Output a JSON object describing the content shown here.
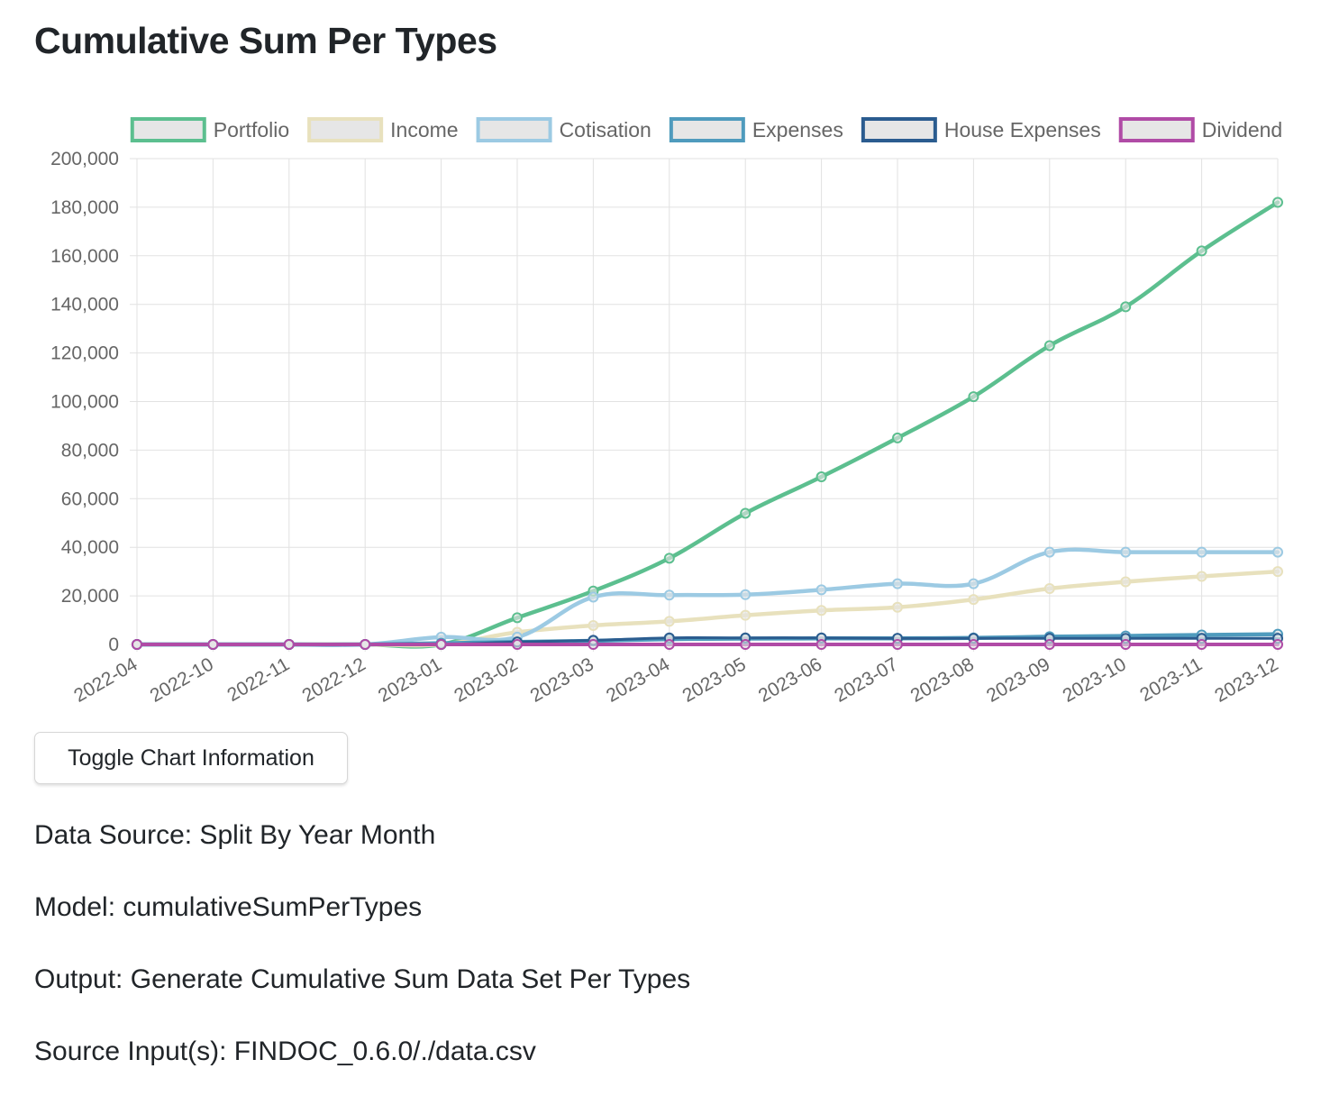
{
  "page": {
    "title": "Cumulative Sum Per Types",
    "toggle_label": "Toggle Chart Information",
    "info": [
      "Data Source: Split By Year Month",
      "Model: cumulativeSumPerTypes",
      "Output: Generate Cumulative Sum Data Set Per Types",
      "Source Input(s): FINDOC_0.6.0/./data.csv"
    ]
  },
  "chart_data": {
    "type": "line",
    "title": "Cumulative Sum Per Types",
    "xlabel": "",
    "ylabel": "",
    "ylim": [
      0,
      200000
    ],
    "y_ticks": [
      0,
      20000,
      40000,
      60000,
      80000,
      100000,
      120000,
      140000,
      160000,
      180000,
      200000
    ],
    "y_tick_labels": [
      "0",
      "20,000",
      "40,000",
      "60,000",
      "80,000",
      "100,000",
      "120,000",
      "140,000",
      "160,000",
      "180,000",
      "200,000"
    ],
    "grid": true,
    "legend_position": "top",
    "categories": [
      "2022-04",
      "2022-10",
      "2022-11",
      "2022-12",
      "2023-01",
      "2023-02",
      "2023-03",
      "2023-04",
      "2023-05",
      "2023-06",
      "2023-07",
      "2023-08",
      "2023-09",
      "2023-10",
      "2023-11",
      "2023-12"
    ],
    "series": [
      {
        "name": "Portfolio",
        "color": "#5cbf8f",
        "width": 4.5,
        "values": [
          0,
          0,
          0,
          0,
          0,
          11000,
          22000,
          35500,
          54000,
          69000,
          85000,
          102000,
          123000,
          139000,
          162000,
          182000
        ]
      },
      {
        "name": "Income",
        "color": "#e8e1bd",
        "width": 4.5,
        "values": [
          0,
          0,
          0,
          0,
          0,
          5000,
          7800,
          9500,
          12000,
          14000,
          15300,
          18500,
          23000,
          25800,
          28000,
          30000
        ]
      },
      {
        "name": "Cotisation",
        "color": "#9ccae3",
        "width": 4.5,
        "values": [
          0,
          0,
          0,
          0,
          3000,
          3000,
          19500,
          20300,
          20500,
          22500,
          25000,
          25000,
          38000,
          38000,
          38000,
          38000
        ]
      },
      {
        "name": "Expenses",
        "color": "#4f9bbd",
        "width": 4.5,
        "values": [
          0,
          0,
          0,
          0,
          500,
          1000,
          1500,
          2200,
          2400,
          2500,
          2500,
          2700,
          3200,
          3500,
          3900,
          4200
        ]
      },
      {
        "name": "House Expenses",
        "color": "#2b5c8f",
        "width": 3,
        "values": [
          0,
          0,
          0,
          0,
          0,
          1000,
          1700,
          2700,
          2700,
          2700,
          2500,
          2500,
          2500,
          2500,
          2500,
          2500
        ]
      },
      {
        "name": "Dividend",
        "color": "#b04ba6",
        "width": 4,
        "values": [
          0,
          0,
          0,
          0,
          0,
          0,
          0,
          0,
          0,
          0,
          0,
          0,
          0,
          0,
          0,
          0
        ]
      }
    ]
  }
}
